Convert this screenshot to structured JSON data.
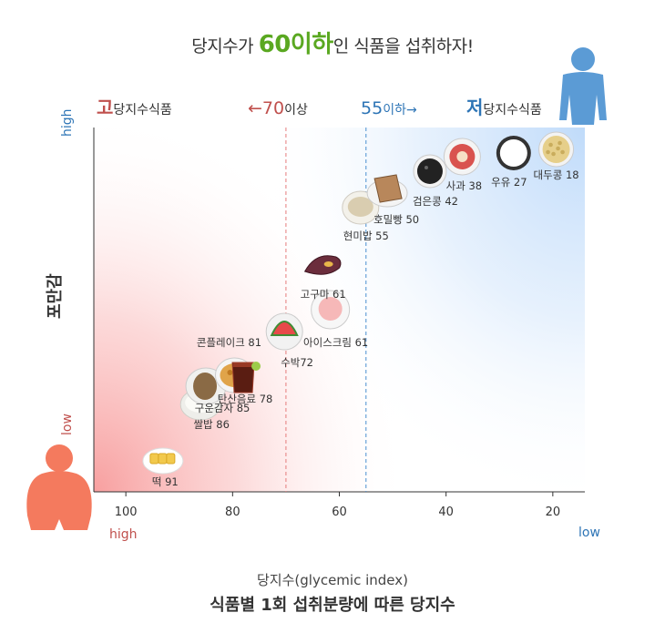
{
  "headline": {
    "pre": "당지수가 ",
    "highlight": "60이하",
    "post": "인 식품을 섭취하자!"
  },
  "zone_labels": {
    "high_gi": {
      "accent": "고",
      "text": "당지수식품"
    },
    "threshold_70": {
      "arrow_value": "←70",
      "suffix": "이상"
    },
    "threshold_55": {
      "value": "55",
      "suffix": "이하→"
    },
    "low_gi": {
      "accent": "저",
      "text": "당지수식품"
    }
  },
  "y_axis": {
    "label": "포만감",
    "top": "high",
    "bottom": "low"
  },
  "x_axis": {
    "left_end": "high",
    "right_end": "low",
    "caption": "당지수(glycemic index)"
  },
  "figure_title": "식품별 1회 섭취분량에 따른 당지수",
  "colors": {
    "high_red": "#c0504d",
    "blue": "#2e75b6",
    "green": "#5aa821",
    "red_zone": "#f8b4b4",
    "blue_zone": "#c9e1fb",
    "person_fat": "#f47a5e",
    "person_slim": "#5b9bd5"
  },
  "chart_data": {
    "type": "scatter",
    "title": "식품별 1회 섭취분량에 따른 당지수",
    "xlabel": "당지수(glycemic index)",
    "ylabel": "포만감",
    "xlim": [
      106,
      14
    ],
    "x_reversed": true,
    "x_ticks": [
      100,
      80,
      60,
      40,
      20
    ],
    "reference_lines": [
      70,
      55
    ],
    "points": [
      {
        "name": "떡",
        "label": "떡 91",
        "gi": 91,
        "satiety": 0.1,
        "icon": "rice-cake-icon"
      },
      {
        "name": "쌀밥",
        "label": "쌀밥 86",
        "gi": 86,
        "satiety": 0.2,
        "icon": "rice-bowl-icon"
      },
      {
        "name": "구운감자",
        "label": "구운감자 85",
        "gi": 85,
        "satiety": 0.29,
        "icon": "baked-potato-icon"
      },
      {
        "name": "콘플레이크",
        "label": "콘플레이크 81",
        "gi": 81,
        "satiety": 0.32,
        "icon": "cornflakes-icon"
      },
      {
        "name": "탄산음료",
        "label": "탄산음료 78",
        "gi": 78,
        "satiety": 0.3,
        "icon": "soda-glass-icon"
      },
      {
        "name": "수박",
        "label": "수박72",
        "gi": 72,
        "satiety": 0.44,
        "icon": "watermelon-icon"
      },
      {
        "name": "아이스크림",
        "label": "아이스크림 61",
        "gi": 61,
        "satiety": 0.5,
        "icon": "ice-cream-icon"
      },
      {
        "name": "고구마",
        "label": "고구마 61",
        "gi": 61,
        "satiety": 0.62,
        "icon": "sweet-potato-icon"
      },
      {
        "name": "현미밥",
        "label": "현미밥 55",
        "gi": 55,
        "satiety": 0.78,
        "icon": "brown-rice-icon"
      },
      {
        "name": "호밀빵",
        "label": "호밀빵 50",
        "gi": 50,
        "satiety": 0.83,
        "icon": "rye-bread-icon"
      },
      {
        "name": "검은콩",
        "label": "검은콩 42",
        "gi": 42,
        "satiety": 0.88,
        "icon": "black-beans-icon"
      },
      {
        "name": "사과",
        "label": "사과 38",
        "gi": 38,
        "satiety": 0.92,
        "icon": "apple-icon"
      },
      {
        "name": "우유",
        "label": "우유 27",
        "gi": 27,
        "satiety": 0.93,
        "icon": "milk-cup-icon"
      },
      {
        "name": "대두콩",
        "label": "대두콩 18",
        "gi": 18,
        "satiety": 0.94,
        "icon": "soybeans-icon"
      }
    ]
  }
}
